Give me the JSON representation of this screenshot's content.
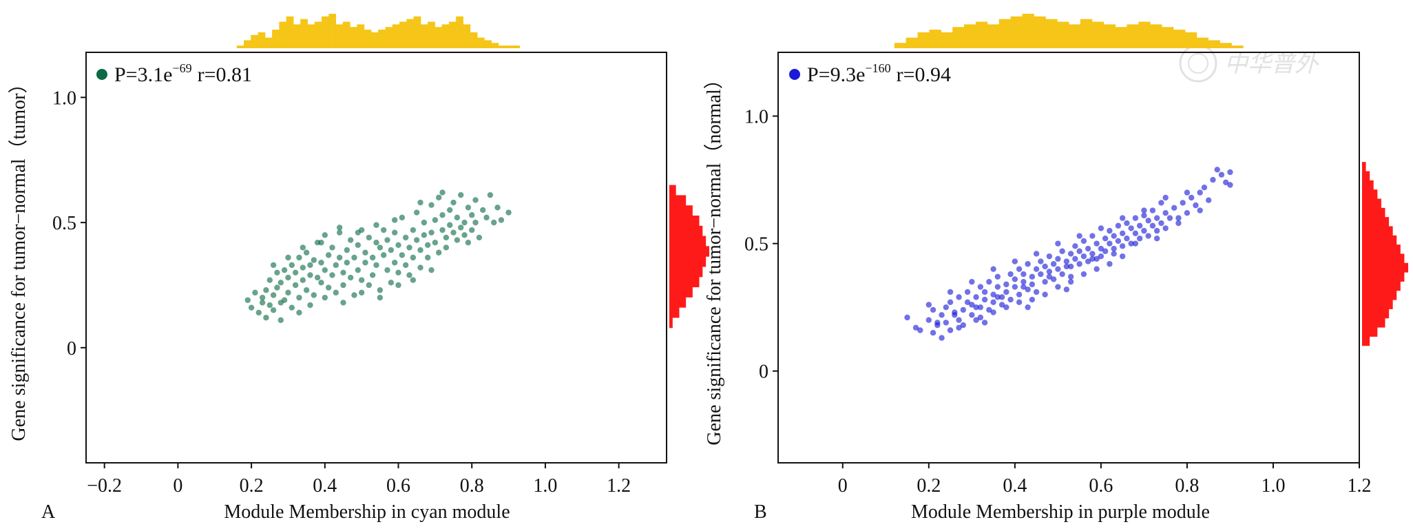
{
  "watermark": "中华普外",
  "colors": {
    "cyan_module_points": "#0b6b45",
    "purple_module_points": "#1a1ad8",
    "top_histogram": "#f5c518",
    "right_histogram": "#ff1a1a",
    "axis": "#111111"
  },
  "chart_data": [
    {
      "panel": "A",
      "type": "scatter",
      "xlabel": "Module Membership in cyan module",
      "ylabel": "Gene significance for tumor−normal（tumor）",
      "annotation": {
        "p_mantissa": "P=3.1e",
        "p_exponent": "−69",
        "r": "r=0.81"
      },
      "xlim": [
        -0.25,
        1.33
      ],
      "ylim": [
        -0.46,
        1.18
      ],
      "xticks": [
        -0.2,
        0,
        0.2,
        0.4,
        0.6,
        0.8,
        1.0,
        1.2
      ],
      "xtick_labels": [
        "−0.2",
        "0",
        "0.2",
        "0.4",
        "0.6",
        "0.8",
        "1.0",
        "1.2"
      ],
      "yticks": [
        0,
        0.5,
        1.0
      ],
      "ytick_labels": [
        "0",
        "0.5",
        "1.0"
      ],
      "point_color": "#0b6b45",
      "marginal_top_color": "#f5c518",
      "marginal_right_color": "#ff1a1a",
      "marginal_top_counts": [
        1,
        3,
        5,
        6,
        4,
        7,
        10,
        12,
        9,
        11,
        9,
        10,
        12,
        13,
        9,
        10,
        8,
        9,
        7,
        6,
        7,
        8,
        9,
        10,
        11,
        12,
        9,
        10,
        8,
        9,
        10,
        12,
        9,
        6,
        4,
        3,
        2,
        1,
        1,
        1
      ],
      "marginal_right_counts": [
        2,
        5,
        7,
        9,
        10,
        11,
        12,
        11,
        10,
        9,
        7,
        5,
        3,
        1
      ],
      "points": [
        [
          0.19,
          0.19
        ],
        [
          0.2,
          0.16
        ],
        [
          0.21,
          0.22
        ],
        [
          0.22,
          0.14
        ],
        [
          0.23,
          0.18
        ],
        [
          0.23,
          0.2
        ],
        [
          0.24,
          0.12
        ],
        [
          0.24,
          0.23
        ],
        [
          0.25,
          0.17
        ],
        [
          0.25,
          0.27
        ],
        [
          0.26,
          0.15
        ],
        [
          0.26,
          0.21
        ],
        [
          0.27,
          0.24
        ],
        [
          0.27,
          0.3
        ],
        [
          0.28,
          0.18
        ],
        [
          0.28,
          0.26
        ],
        [
          0.29,
          0.19
        ],
        [
          0.29,
          0.31
        ],
        [
          0.3,
          0.22
        ],
        [
          0.3,
          0.28
        ],
        [
          0.31,
          0.16
        ],
        [
          0.31,
          0.33
        ],
        [
          0.32,
          0.25
        ],
        [
          0.32,
          0.3
        ],
        [
          0.33,
          0.2
        ],
        [
          0.33,
          0.36
        ],
        [
          0.34,
          0.27
        ],
        [
          0.34,
          0.32
        ],
        [
          0.35,
          0.23
        ],
        [
          0.35,
          0.38
        ],
        [
          0.36,
          0.29
        ],
        [
          0.36,
          0.33
        ],
        [
          0.37,
          0.21
        ],
        [
          0.37,
          0.35
        ],
        [
          0.38,
          0.28
        ],
        [
          0.38,
          0.42
        ],
        [
          0.39,
          0.26
        ],
        [
          0.39,
          0.34
        ],
        [
          0.4,
          0.31
        ],
        [
          0.4,
          0.45
        ],
        [
          0.41,
          0.24
        ],
        [
          0.41,
          0.37
        ],
        [
          0.42,
          0.29
        ],
        [
          0.42,
          0.4
        ],
        [
          0.43,
          0.33
        ],
        [
          0.43,
          0.22
        ],
        [
          0.44,
          0.36
        ],
        [
          0.44,
          0.46
        ],
        [
          0.45,
          0.3
        ],
        [
          0.45,
          0.25
        ],
        [
          0.46,
          0.39
        ],
        [
          0.46,
          0.34
        ],
        [
          0.47,
          0.28
        ],
        [
          0.47,
          0.43
        ],
        [
          0.48,
          0.36
        ],
        [
          0.48,
          0.21
        ],
        [
          0.49,
          0.41
        ],
        [
          0.49,
          0.31
        ],
        [
          0.5,
          0.47
        ],
        [
          0.5,
          0.27
        ],
        [
          0.51,
          0.38
        ],
        [
          0.51,
          0.34
        ],
        [
          0.52,
          0.44
        ],
        [
          0.52,
          0.25
        ],
        [
          0.53,
          0.36
        ],
        [
          0.53,
          0.29
        ],
        [
          0.54,
          0.42
        ],
        [
          0.54,
          0.33
        ],
        [
          0.55,
          0.4
        ],
        [
          0.55,
          0.23
        ],
        [
          0.56,
          0.37
        ],
        [
          0.56,
          0.47
        ],
        [
          0.57,
          0.31
        ],
        [
          0.57,
          0.43
        ],
        [
          0.58,
          0.39
        ],
        [
          0.58,
          0.26
        ],
        [
          0.59,
          0.46
        ],
        [
          0.59,
          0.34
        ],
        [
          0.6,
          0.41
        ],
        [
          0.6,
          0.3
        ],
        [
          0.61,
          0.52
        ],
        [
          0.61,
          0.37
        ],
        [
          0.62,
          0.33
        ],
        [
          0.62,
          0.44
        ],
        [
          0.63,
          0.4
        ],
        [
          0.63,
          0.29
        ],
        [
          0.64,
          0.47
        ],
        [
          0.64,
          0.36
        ],
        [
          0.65,
          0.43
        ],
        [
          0.65,
          0.54
        ],
        [
          0.66,
          0.39
        ],
        [
          0.66,
          0.32
        ],
        [
          0.67,
          0.45
        ],
        [
          0.67,
          0.5
        ],
        [
          0.68,
          0.41
        ],
        [
          0.68,
          0.36
        ],
        [
          0.69,
          0.57
        ],
        [
          0.69,
          0.46
        ],
        [
          0.7,
          0.42
        ],
        [
          0.7,
          0.51
        ],
        [
          0.71,
          0.38
        ],
        [
          0.71,
          0.6
        ],
        [
          0.72,
          0.47
        ],
        [
          0.72,
          0.53
        ],
        [
          0.73,
          0.44
        ],
        [
          0.73,
          0.4
        ],
        [
          0.74,
          0.55
        ],
        [
          0.74,
          0.49
        ],
        [
          0.75,
          0.46
        ],
        [
          0.75,
          0.58
        ],
        [
          0.76,
          0.43
        ],
        [
          0.76,
          0.52
        ],
        [
          0.77,
          0.48
        ],
        [
          0.77,
          0.61
        ],
        [
          0.78,
          0.45
        ],
        [
          0.78,
          0.5
        ],
        [
          0.79,
          0.56
        ],
        [
          0.79,
          0.42
        ],
        [
          0.8,
          0.53
        ],
        [
          0.8,
          0.47
        ],
        [
          0.81,
          0.59
        ],
        [
          0.81,
          0.5
        ],
        [
          0.82,
          0.44
        ],
        [
          0.83,
          0.55
        ],
        [
          0.84,
          0.52
        ],
        [
          0.85,
          0.61
        ],
        [
          0.86,
          0.5
        ],
        [
          0.87,
          0.56
        ],
        [
          0.88,
          0.51
        ],
        [
          0.9,
          0.54
        ],
        [
          0.28,
          0.11
        ],
        [
          0.33,
          0.14
        ],
        [
          0.36,
          0.17
        ],
        [
          0.4,
          0.2
        ],
        [
          0.45,
          0.18
        ],
        [
          0.5,
          0.22
        ],
        [
          0.55,
          0.2
        ],
        [
          0.6,
          0.25
        ],
        [
          0.64,
          0.27
        ],
        [
          0.69,
          0.31
        ],
        [
          0.26,
          0.33
        ],
        [
          0.3,
          0.36
        ],
        [
          0.34,
          0.4
        ],
        [
          0.39,
          0.42
        ],
        [
          0.44,
          0.48
        ],
        [
          0.49,
          0.46
        ],
        [
          0.54,
          0.49
        ],
        [
          0.59,
          0.51
        ],
        [
          0.66,
          0.58
        ],
        [
          0.72,
          0.62
        ]
      ]
    },
    {
      "panel": "B",
      "type": "scatter",
      "xlabel": "Module Membership in purple module",
      "ylabel": "Gene significance for tumor−normal（normal）",
      "annotation": {
        "p_mantissa": "P=9.3e",
        "p_exponent": "−160",
        "r": "r=0.94"
      },
      "xlim": [
        -0.15,
        1.2
      ],
      "ylim": [
        -0.36,
        1.25
      ],
      "xticks": [
        0,
        0.2,
        0.4,
        0.6,
        0.8,
        1.0,
        1.2
      ],
      "xtick_labels": [
        "0",
        "0.2",
        "0.4",
        "0.6",
        "0.8",
        "1.0",
        "1.2"
      ],
      "yticks": [
        0,
        0.5,
        1.0
      ],
      "ytick_labels": [
        "0",
        "0.5",
        "1.0"
      ],
      "point_color": "#1a1ad8",
      "marginal_top_color": "#f5c518",
      "marginal_right_color": "#ff1a1a",
      "marginal_top_counts": [
        2,
        4,
        6,
        7,
        6,
        8,
        9,
        10,
        9,
        11,
        12,
        13,
        12,
        11,
        10,
        9,
        11,
        10,
        9,
        8,
        9,
        10,
        9,
        8,
        7,
        6,
        4,
        3,
        2,
        1
      ],
      "marginal_right_counts": [
        1,
        2,
        3,
        4,
        5,
        6,
        7,
        8,
        9,
        10,
        11,
        12,
        11,
        10,
        9,
        8,
        7,
        6,
        4,
        2
      ],
      "points": [
        [
          0.15,
          0.21
        ],
        [
          0.17,
          0.17
        ],
        [
          0.18,
          0.16
        ],
        [
          0.2,
          0.2
        ],
        [
          0.21,
          0.15
        ],
        [
          0.21,
          0.24
        ],
        [
          0.22,
          0.18
        ],
        [
          0.23,
          0.22
        ],
        [
          0.23,
          0.13
        ],
        [
          0.24,
          0.25
        ],
        [
          0.24,
          0.19
        ],
        [
          0.25,
          0.16
        ],
        [
          0.25,
          0.27
        ],
        [
          0.26,
          0.22
        ],
        [
          0.27,
          0.2
        ],
        [
          0.27,
          0.29
        ],
        [
          0.28,
          0.24
        ],
        [
          0.28,
          0.18
        ],
        [
          0.29,
          0.27
        ],
        [
          0.29,
          0.31
        ],
        [
          0.3,
          0.22
        ],
        [
          0.3,
          0.26
        ],
        [
          0.31,
          0.29
        ],
        [
          0.31,
          0.2
        ],
        [
          0.32,
          0.33
        ],
        [
          0.32,
          0.25
        ],
        [
          0.33,
          0.28
        ],
        [
          0.33,
          0.31
        ],
        [
          0.34,
          0.24
        ],
        [
          0.34,
          0.35
        ],
        [
          0.35,
          0.3
        ],
        [
          0.35,
          0.27
        ],
        [
          0.36,
          0.33
        ],
        [
          0.36,
          0.37
        ],
        [
          0.37,
          0.29
        ],
        [
          0.37,
          0.26
        ],
        [
          0.38,
          0.34
        ],
        [
          0.38,
          0.31
        ],
        [
          0.39,
          0.38
        ],
        [
          0.39,
          0.28
        ],
        [
          0.4,
          0.33
        ],
        [
          0.4,
          0.36
        ],
        [
          0.41,
          0.4
        ],
        [
          0.41,
          0.3
        ],
        [
          0.42,
          0.35
        ],
        [
          0.42,
          0.38
        ],
        [
          0.43,
          0.32
        ],
        [
          0.43,
          0.42
        ],
        [
          0.44,
          0.37
        ],
        [
          0.44,
          0.34
        ],
        [
          0.45,
          0.4
        ],
        [
          0.45,
          0.31
        ],
        [
          0.46,
          0.38
        ],
        [
          0.46,
          0.43
        ],
        [
          0.47,
          0.35
        ],
        [
          0.47,
          0.41
        ],
        [
          0.48,
          0.39
        ],
        [
          0.48,
          0.45
        ],
        [
          0.49,
          0.36
        ],
        [
          0.49,
          0.42
        ],
        [
          0.5,
          0.44
        ],
        [
          0.5,
          0.4
        ],
        [
          0.51,
          0.38
        ],
        [
          0.51,
          0.47
        ],
        [
          0.52,
          0.43
        ],
        [
          0.52,
          0.41
        ],
        [
          0.53,
          0.46
        ],
        [
          0.53,
          0.37
        ],
        [
          0.54,
          0.44
        ],
        [
          0.54,
          0.49
        ],
        [
          0.55,
          0.42
        ],
        [
          0.55,
          0.47
        ],
        [
          0.56,
          0.45
        ],
        [
          0.56,
          0.51
        ],
        [
          0.57,
          0.43
        ],
        [
          0.57,
          0.48
        ],
        [
          0.58,
          0.46
        ],
        [
          0.58,
          0.53
        ],
        [
          0.59,
          0.44
        ],
        [
          0.59,
          0.5
        ],
        [
          0.6,
          0.48
        ],
        [
          0.6,
          0.45
        ],
        [
          0.61,
          0.52
        ],
        [
          0.61,
          0.47
        ],
        [
          0.62,
          0.5
        ],
        [
          0.62,
          0.55
        ],
        [
          0.63,
          0.46
        ],
        [
          0.63,
          0.53
        ],
        [
          0.64,
          0.51
        ],
        [
          0.64,
          0.57
        ],
        [
          0.65,
          0.49
        ],
        [
          0.65,
          0.54
        ],
        [
          0.66,
          0.52
        ],
        [
          0.66,
          0.58
        ],
        [
          0.67,
          0.5
        ],
        [
          0.67,
          0.56
        ],
        [
          0.68,
          0.54
        ],
        [
          0.68,
          0.6
        ],
        [
          0.69,
          0.52
        ],
        [
          0.69,
          0.57
        ],
        [
          0.7,
          0.55
        ],
        [
          0.7,
          0.61
        ],
        [
          0.71,
          0.53
        ],
        [
          0.71,
          0.59
        ],
        [
          0.72,
          0.57
        ],
        [
          0.72,
          0.63
        ],
        [
          0.73,
          0.55
        ],
        [
          0.73,
          0.6
        ],
        [
          0.74,
          0.58
        ],
        [
          0.74,
          0.66
        ],
        [
          0.75,
          0.56
        ],
        [
          0.75,
          0.62
        ],
        [
          0.76,
          0.6
        ],
        [
          0.77,
          0.64
        ],
        [
          0.78,
          0.58
        ],
        [
          0.79,
          0.66
        ],
        [
          0.8,
          0.62
        ],
        [
          0.81,
          0.68
        ],
        [
          0.82,
          0.65
        ],
        [
          0.83,
          0.7
        ],
        [
          0.84,
          0.72
        ],
        [
          0.85,
          0.67
        ],
        [
          0.86,
          0.75
        ],
        [
          0.87,
          0.79
        ],
        [
          0.88,
          0.77
        ],
        [
          0.89,
          0.74
        ],
        [
          0.9,
          0.78
        ],
        [
          0.9,
          0.73
        ],
        [
          0.32,
          0.21
        ],
        [
          0.35,
          0.23
        ],
        [
          0.38,
          0.25
        ],
        [
          0.41,
          0.27
        ],
        [
          0.44,
          0.28
        ],
        [
          0.47,
          0.3
        ],
        [
          0.5,
          0.33
        ],
        [
          0.53,
          0.35
        ],
        [
          0.56,
          0.38
        ],
        [
          0.59,
          0.4
        ],
        [
          0.62,
          0.42
        ],
        [
          0.65,
          0.45
        ],
        [
          0.2,
          0.26
        ],
        [
          0.25,
          0.31
        ],
        [
          0.3,
          0.35
        ],
        [
          0.35,
          0.4
        ],
        [
          0.4,
          0.43
        ],
        [
          0.45,
          0.46
        ],
        [
          0.5,
          0.5
        ],
        [
          0.55,
          0.53
        ],
        [
          0.6,
          0.56
        ],
        [
          0.65,
          0.6
        ],
        [
          0.7,
          0.63
        ],
        [
          0.75,
          0.68
        ],
        [
          0.8,
          0.7
        ],
        [
          0.22,
          0.19
        ],
        [
          0.26,
          0.23
        ],
        [
          0.31,
          0.25
        ],
        [
          0.36,
          0.29
        ],
        [
          0.42,
          0.33
        ],
        [
          0.48,
          0.37
        ],
        [
          0.53,
          0.41
        ],
        [
          0.58,
          0.44
        ],
        [
          0.63,
          0.48
        ],
        [
          0.68,
          0.5
        ],
        [
          0.73,
          0.52
        ],
        [
          0.78,
          0.6
        ],
        [
          0.83,
          0.63
        ],
        [
          0.27,
          0.17
        ],
        [
          0.33,
          0.19
        ],
        [
          0.43,
          0.25
        ],
        [
          0.52,
          0.32
        ]
      ]
    }
  ]
}
